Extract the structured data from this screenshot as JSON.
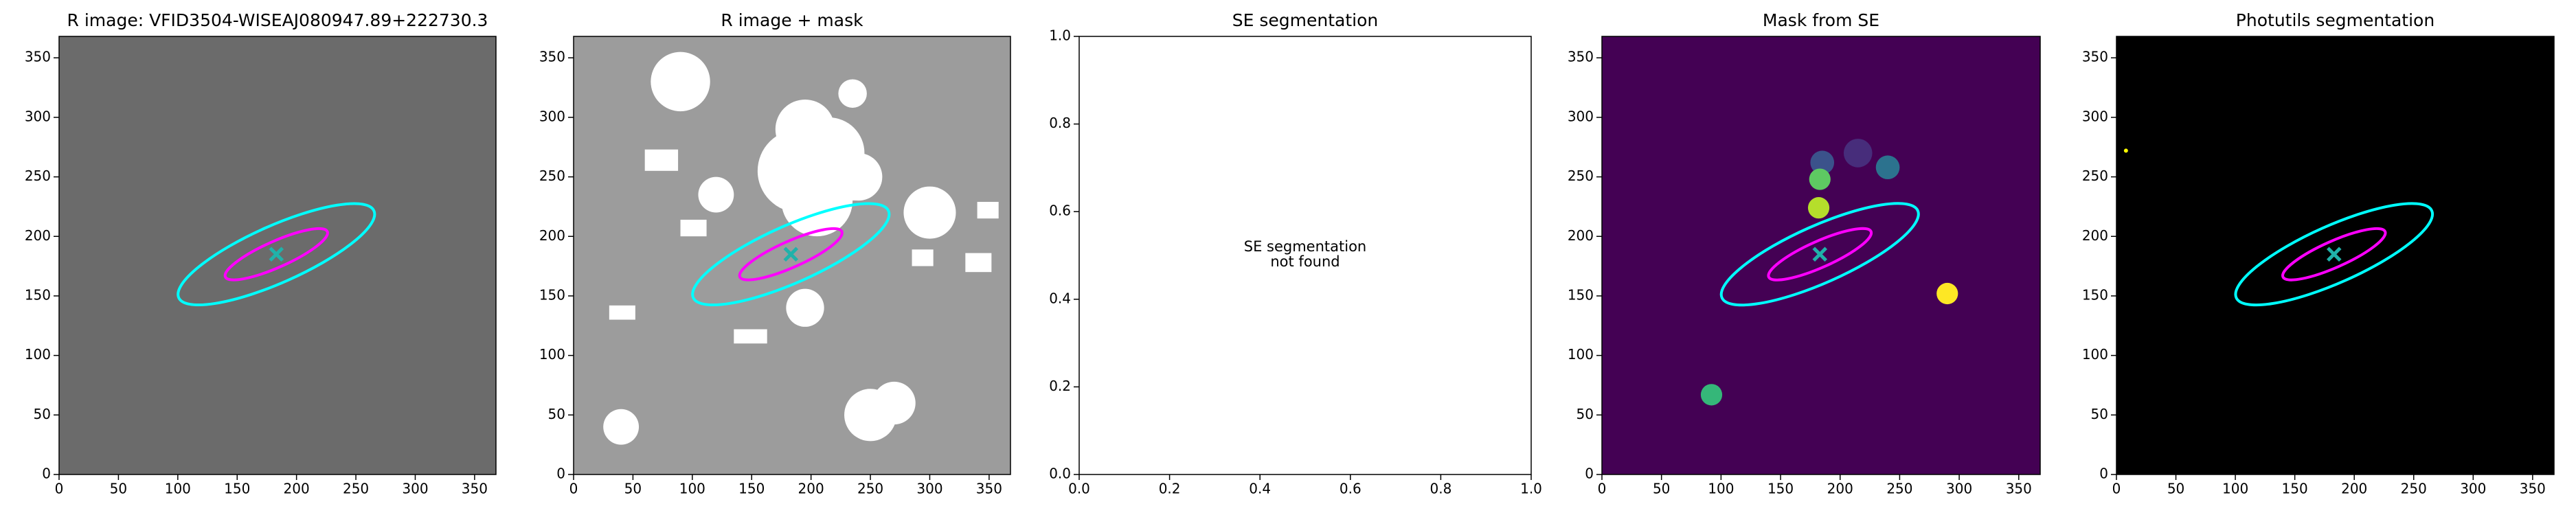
{
  "chart_data": [
    {
      "type": "image",
      "title": "R image: VFID3504-WISEAJ080947.89+222730.3",
      "background": "#6b6b6b",
      "xlim": [
        0,
        368
      ],
      "ylim": [
        0,
        368
      ],
      "xticks": [
        0,
        50,
        100,
        150,
        200,
        250,
        300,
        350
      ],
      "yticks": [
        0,
        50,
        100,
        150,
        200,
        250,
        300,
        350
      ]
    },
    {
      "type": "image",
      "title": "R image + mask",
      "background": "#9c9c9c",
      "xlim": [
        0,
        368
      ],
      "ylim": [
        0,
        368
      ],
      "xticks": [
        0,
        50,
        100,
        150,
        200,
        250,
        300,
        350
      ],
      "yticks": [
        0,
        50,
        100,
        150,
        200,
        250,
        300,
        350
      ]
    },
    {
      "type": "empty",
      "title": "SE segmentation",
      "background": "#ffffff",
      "annotation": [
        "SE segmentation",
        "not found"
      ],
      "xlim": [
        0,
        1
      ],
      "ylim": [
        0,
        1
      ],
      "xticks": [
        {
          "value": 0,
          "label": "0.0"
        },
        0.2,
        0.4,
        0.6,
        0.8,
        {
          "value": 1,
          "label": "1.0"
        }
      ],
      "yticks": [
        {
          "value": 0,
          "label": "0.0"
        },
        0.2,
        0.4,
        0.6,
        0.8,
        {
          "value": 1,
          "label": "1.0"
        }
      ]
    },
    {
      "type": "image",
      "title": "Mask from SE",
      "background": "#440154",
      "xlim": [
        0,
        368
      ],
      "ylim": [
        0,
        368
      ],
      "xticks": [
        0,
        50,
        100,
        150,
        200,
        250,
        300,
        350
      ],
      "yticks": [
        0,
        50,
        100,
        150,
        200,
        250,
        300,
        350
      ]
    },
    {
      "type": "image",
      "title": "Photutils segmentation",
      "background": "#000000",
      "xlim": [
        0,
        368
      ],
      "ylim": [
        0,
        368
      ],
      "xticks": [
        0,
        50,
        100,
        150,
        200,
        250,
        300,
        350
      ],
      "yticks": [
        0,
        50,
        100,
        150,
        200,
        250,
        300,
        350
      ]
    }
  ]
}
